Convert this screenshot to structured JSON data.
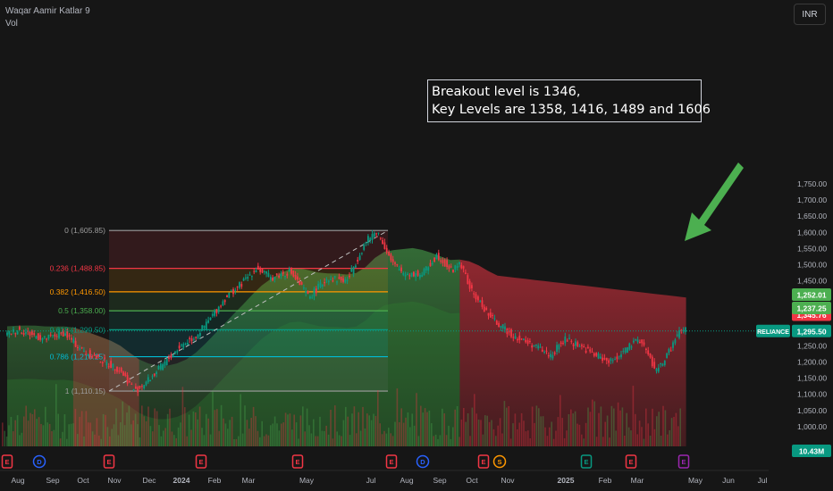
{
  "header": {
    "indicator": "Waqar Aamir Katlar 9",
    "vol": "Vol",
    "currency": "INR"
  },
  "annotation": {
    "line1": "Breakout level is 1346,",
    "line2": "Key Levels are 1358, 1416, 1489 and 1606"
  },
  "chart_data": {
    "type": "candlestick",
    "symbol": "RELIANCE",
    "currency": "INR",
    "y_ticks": [
      1000,
      1050,
      1100,
      1150,
      1200,
      1250,
      1300,
      1350,
      1400,
      1450,
      1500,
      1550,
      1600,
      1650,
      1700,
      1750
    ],
    "y_tick_labels": [
      "1,000.00",
      "1,050.00",
      "1,100.00",
      "1,150.00",
      "1,200.00",
      "1,250.00",
      "1,300.00",
      "1,350.00",
      "1,400.00",
      "1,450.00",
      "1,500.00",
      "1,550.00",
      "1,600.00",
      "1,650.00",
      "1,700.00",
      "1,750.00"
    ],
    "x_labels": [
      "Aug",
      "Sep",
      "Oct",
      "Nov",
      "Dec",
      "2024",
      "Feb",
      "Mar",
      "May",
      "Jul",
      "Aug",
      "Sep",
      "Oct",
      "Nov",
      "2025",
      "Feb",
      "Mar",
      "May",
      "Jun",
      "Jul"
    ],
    "price_path": [
      {
        "t": 0,
        "p": 1285
      },
      {
        "t": 0.3,
        "p": 1300
      },
      {
        "t": 1,
        "p": 1270
      },
      {
        "t": 1.5,
        "p": 1290
      },
      {
        "t": 2,
        "p": 1235
      },
      {
        "t": 2.5,
        "p": 1205
      },
      {
        "t": 3,
        "p": 1175
      },
      {
        "t": 3.4,
        "p": 1110
      },
      {
        "t": 3.8,
        "p": 1150
      },
      {
        "t": 4.2,
        "p": 1200
      },
      {
        "t": 4.6,
        "p": 1250
      },
      {
        "t": 5,
        "p": 1280
      },
      {
        "t": 5.3,
        "p": 1320
      },
      {
        "t": 5.8,
        "p": 1400
      },
      {
        "t": 6.2,
        "p": 1440
      },
      {
        "t": 6.6,
        "p": 1490
      },
      {
        "t": 7,
        "p": 1460
      },
      {
        "t": 7.5,
        "p": 1480
      },
      {
        "t": 8,
        "p": 1400
      },
      {
        "t": 8.5,
        "p": 1460
      },
      {
        "t": 9,
        "p": 1450
      },
      {
        "t": 9.5,
        "p": 1570
      },
      {
        "t": 9.8,
        "p": 1605
      },
      {
        "t": 10,
        "p": 1560
      },
      {
        "t": 10.2,
        "p": 1505
      },
      {
        "t": 10.5,
        "p": 1475
      },
      {
        "t": 11,
        "p": 1470
      },
      {
        "t": 11.4,
        "p": 1530
      },
      {
        "t": 11.8,
        "p": 1480
      },
      {
        "t": 12,
        "p": 1510
      },
      {
        "t": 12.3,
        "p": 1420
      },
      {
        "t": 12.8,
        "p": 1340
      },
      {
        "t": 13.2,
        "p": 1300
      },
      {
        "t": 13.6,
        "p": 1270
      },
      {
        "t": 14,
        "p": 1250
      },
      {
        "t": 14.4,
        "p": 1220
      },
      {
        "t": 14.8,
        "p": 1270
      },
      {
        "t": 15.2,
        "p": 1250
      },
      {
        "t": 15.6,
        "p": 1220
      },
      {
        "t": 16,
        "p": 1200
      },
      {
        "t": 16.4,
        "p": 1240
      },
      {
        "t": 16.8,
        "p": 1270
      },
      {
        "t": 17,
        "p": 1220
      },
      {
        "t": 17.2,
        "p": 1170
      },
      {
        "t": 17.5,
        "p": 1220
      },
      {
        "t": 17.8,
        "p": 1290
      },
      {
        "t": 18,
        "p": 1300
      }
    ],
    "fib_levels": [
      {
        "label": "0 (1,605.85)",
        "value": 1605.85,
        "color": "#9e9e9e"
      },
      {
        "label": "0.236 (1,488.85)",
        "value": 1488.85,
        "color": "#f23645"
      },
      {
        "label": "0.382 (1,416.50)",
        "value": 1416.5,
        "color": "#ff9800"
      },
      {
        "label": "0.5 (1,358.00)",
        "value": 1358,
        "color": "#4caf50"
      },
      {
        "label": "0.618 (1,299.50)",
        "value": 1299.5,
        "color": "#089981"
      },
      {
        "label": "0.786 (1,216.25)",
        "value": 1216.25,
        "color": "#00bcd4"
      },
      {
        "label": "1 (1,110.15)",
        "value": 1110.15,
        "color": "#9e9e9e"
      }
    ],
    "price_labels": [
      {
        "text": "1,345.76",
        "value": 1345.76,
        "color": "#f23645"
      },
      {
        "text": "1,295.50",
        "value": 1295.5,
        "color": "#089981",
        "symbol": "RELIANCE"
      },
      {
        "text": "1,252.01",
        "value": 1252.01,
        "color": "#4caf50"
      },
      {
        "text": "1,237.25",
        "value": 1237.25,
        "color": "#4caf50"
      }
    ],
    "volume_label": "10.43M",
    "events": [
      {
        "x_month": 0,
        "label": "E",
        "color": "#f23645"
      },
      {
        "x_month": 1,
        "label": "D",
        "color": "#2962ff"
      },
      {
        "x_month": 3,
        "label": "E",
        "color": "#f23645"
      },
      {
        "x_month": 6,
        "label": "E",
        "color": "#f23645"
      },
      {
        "x_month": 9,
        "label": "E",
        "color": "#f23645"
      },
      {
        "x_month": 12,
        "label": "E",
        "color": "#f23645"
      },
      {
        "x_month": 13,
        "label": "D",
        "color": "#2962ff"
      },
      {
        "x_month": 15,
        "label": "E",
        "color": "#f23645"
      },
      {
        "x_month": 15.5,
        "label": "S",
        "color": "#ff9800"
      },
      {
        "x_month": 18,
        "label": "E",
        "color": "#089981"
      },
      {
        "x_month": 21,
        "label": "E",
        "color": "#f23645"
      },
      {
        "x_month": 22.6,
        "label": "E",
        "color": "#9c27b0"
      }
    ]
  }
}
